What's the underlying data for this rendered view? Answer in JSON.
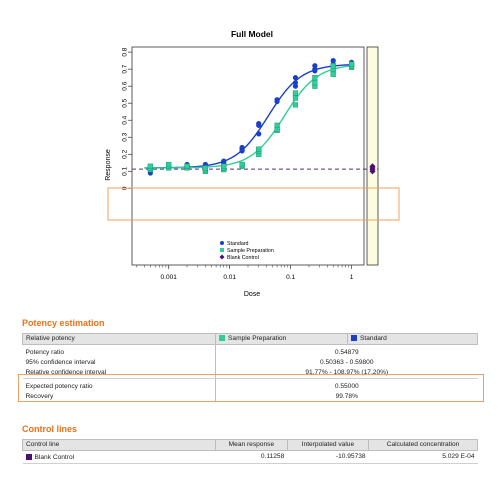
{
  "chart_data": {
    "type": "scatter",
    "title": "Full Model",
    "xlabel": "Dose",
    "ylabel": "Response",
    "xscale": "log",
    "xlim": [
      0.00025,
      1.6
    ],
    "ylim": [
      -0.45,
      0.83
    ],
    "x_ticks": [
      0.001,
      0.01,
      0.1,
      1
    ],
    "x_tick_labels": [
      "0.001",
      "0.01",
      "0.1",
      "1"
    ],
    "y_ticks": [
      0,
      0.1,
      0.2,
      0.3,
      0.4,
      0.5,
      0.6,
      0.7,
      0.8
    ],
    "y_tick_labels": [
      "0",
      "0.1",
      "0.2",
      "0.3",
      "0.4",
      "0.5",
      "0.6",
      "0.7",
      "0.8"
    ],
    "grid": false,
    "legend_position": "bottom-center",
    "reference_line": 0.11258,
    "series": [
      {
        "name": "Standard",
        "color": "#1a3fc9",
        "x": [
          0.0005,
          0.0005,
          0.0005,
          0.001,
          0.001,
          0.001,
          0.002,
          0.002,
          0.002,
          0.004,
          0.004,
          0.004,
          0.008,
          0.008,
          0.008,
          0.016,
          0.016,
          0.016,
          0.03,
          0.03,
          0.03,
          0.06,
          0.06,
          0.06,
          0.12,
          0.12,
          0.12,
          0.25,
          0.25,
          0.25,
          0.5,
          0.5,
          0.5,
          1,
          1,
          1
        ],
        "y": [
          0.09,
          0.11,
          0.12,
          0.12,
          0.13,
          0.13,
          0.12,
          0.13,
          0.14,
          0.12,
          0.13,
          0.14,
          0.14,
          0.15,
          0.16,
          0.22,
          0.23,
          0.24,
          0.32,
          0.37,
          0.38,
          0.51,
          0.52,
          0.52,
          0.6,
          0.62,
          0.65,
          0.69,
          0.7,
          0.72,
          0.72,
          0.73,
          0.75,
          0.72,
          0.73,
          0.74
        ]
      },
      {
        "name": "Sample Preparation",
        "color": "#2ecf9a",
        "x": [
          0.0005,
          0.0005,
          0.0005,
          0.001,
          0.001,
          0.001,
          0.002,
          0.002,
          0.002,
          0.004,
          0.004,
          0.004,
          0.008,
          0.008,
          0.008,
          0.016,
          0.016,
          0.016,
          0.03,
          0.03,
          0.03,
          0.06,
          0.06,
          0.06,
          0.12,
          0.12,
          0.12,
          0.25,
          0.25,
          0.25,
          0.5,
          0.5,
          0.5,
          1,
          1,
          1
        ],
        "y": [
          0.11,
          0.12,
          0.13,
          0.12,
          0.13,
          0.14,
          0.12,
          0.13,
          0.13,
          0.1,
          0.11,
          0.12,
          0.11,
          0.12,
          0.13,
          0.13,
          0.14,
          0.14,
          0.2,
          0.22,
          0.23,
          0.34,
          0.35,
          0.37,
          0.49,
          0.53,
          0.56,
          0.6,
          0.62,
          0.65,
          0.67,
          0.7,
          0.72,
          0.71,
          0.72,
          0.73
        ]
      },
      {
        "name": "Blank Control",
        "color": "#4b0e72",
        "x": [
          1.5,
          1.5,
          1.5,
          1.5
        ],
        "y": [
          0.1,
          0.11,
          0.12,
          0.13
        ]
      }
    ],
    "fits": [
      {
        "name": "Standard",
        "color": "#1a3fc9",
        "bottom": 0.12,
        "top": 0.73,
        "ec50": 0.043,
        "hill": 1.6
      },
      {
        "name": "Sample Preparation",
        "color": "#2ecf9a",
        "bottom": 0.12,
        "top": 0.73,
        "ec50": 0.079,
        "hill": 1.6
      }
    ]
  },
  "potency": {
    "title": "Potency estimation",
    "col_relative": "Relative potency",
    "col_sample": "Sample Preparation",
    "col_standard": "Standard",
    "sample_color": "#2ecf9a",
    "standard_color": "#1a3fc9",
    "rows": [
      {
        "label": "Potency ratio",
        "value": "0.54879"
      },
      {
        "label": "95% confidence interval",
        "value": "0.50363 - 0.59800"
      },
      {
        "label": "Relative confidence interval",
        "value": "91.77% - 108.97% (17.20%)"
      },
      {
        "label": "Expected potency ratio",
        "value": "0.55000"
      },
      {
        "label": "Recovery",
        "value": "99.78%"
      }
    ]
  },
  "control": {
    "title": "Control lines",
    "headers": [
      "Control line",
      "Mean response",
      "Interpolated value",
      "Calculated concentration"
    ],
    "row": {
      "name": "Blank Control",
      "color": "#4b0e72",
      "mean": "0.11258",
      "interp": "-10.95738",
      "conc": "5.029 E-04"
    }
  }
}
